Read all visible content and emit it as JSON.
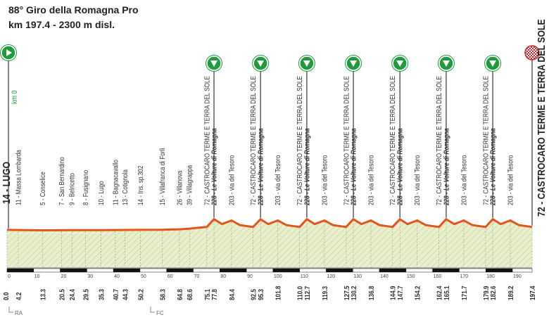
{
  "header": {
    "title": "88° Giro della Romagna Pro",
    "subtitle": "km 197.4 - 2300 m disl."
  },
  "chart_data": {
    "type": "area",
    "start": {
      "km": {
        "value": 0,
        "label": "0.0"
      },
      "label": "14 - LUGO",
      "note": "km 0"
    },
    "finish": {
      "km": 197.4,
      "label": "72 - CASTROCARO TERME E TERRA DEL SOLE"
    },
    "waypoints": [
      {
        "km": 4.2,
        "label": "11 - Massa Lombarda"
      },
      {
        "km": 13.3,
        "label": "5 - Conselice"
      },
      {
        "km": 20.5,
        "label": "7 - San Bernardino"
      },
      {
        "km": 24.4,
        "label": "9 - Belricetto"
      },
      {
        "km": 29.5,
        "label": "8 - Fusignano"
      },
      {
        "km": 35.3,
        "label": "10 - Lugo"
      },
      {
        "km": 40.7,
        "label": "11 - Bagnacavallo"
      },
      {
        "km": 44.3,
        "label": "13 - Cotignola"
      },
      {
        "km": 50.2,
        "label": "14 - Ins. sp.302"
      },
      {
        "km": 58.3,
        "label": "15 - Villafranca di Forlì"
      },
      {
        "km": 64.8,
        "label": "26 - Villanova"
      },
      {
        "km": 68.6,
        "label": "39 - Villagrappa"
      },
      {
        "km": 75.1,
        "label": "72 - CASTROCARO TERME E TERRA DEL SOLE"
      },
      {
        "km": 77.8,
        "label": "228 - Le Volture di Romagna",
        "climb": true
      },
      {
        "km": 84.4,
        "label": "203 - via del Tesoro"
      },
      {
        "km": 92.5,
        "label": "72 - CASTROCARO TERME E TERRA DEL SOLE"
      },
      {
        "km": 95.3,
        "label": "228 - Le Volture di Romagna",
        "climb": true
      },
      {
        "km": 101.8,
        "label": "203 - via del Tesoro"
      },
      {
        "km": 110,
        "label": "72 - CASTROCARO TERME E TERRA DEL SOLE",
        "km_label": "110.0"
      },
      {
        "km": 112.7,
        "label": "228 - Le Volture di Romagna",
        "climb": true
      },
      {
        "km": 119.3,
        "label": "203 - via del Tesoro"
      },
      {
        "km": 127.5,
        "label": "72 - CASTROCARO TERME E TERRA DEL SOLE"
      },
      {
        "km": 130.2,
        "label": "228 - Le Volture di Romagna",
        "climb": true
      },
      {
        "km": 136.8,
        "label": "203 - via del Tesoro"
      },
      {
        "km": 144.9,
        "label": "72 - CASTROCARO TERME E TERRA DEL SOLE"
      },
      {
        "km": 147.7,
        "label": "228 - Le Volture di Romagna",
        "climb": true
      },
      {
        "km": 154.2,
        "label": "203 - via del Tesoro"
      },
      {
        "km": 162.4,
        "label": "72 - CASTROCARO TERME E TERRA DEL SOLE"
      },
      {
        "km": 165.1,
        "label": "228 - Le Volture di Romagna",
        "climb": true
      },
      {
        "km": 171.7,
        "label": "203 - via del Tesoro"
      },
      {
        "km": 179.9,
        "label": "72 - CASTROCARO TERME E TERRA DEL SOLE"
      },
      {
        "km": 182.6,
        "label": "228 - Le Volture di Romagna",
        "climb": true
      },
      {
        "km": 189.2,
        "label": "203 - via del Tesoro"
      }
    ],
    "x": [
      0,
      4.2,
      13.3,
      20.5,
      24.4,
      29.5,
      35.3,
      40.7,
      44.3,
      50.2,
      58.3,
      64.8,
      68.6,
      75.1,
      77.8,
      80.8,
      84.4,
      87.5,
      92.5,
      95.3,
      98.2,
      101.8,
      105,
      110,
      112.7,
      115.7,
      119.3,
      122.5,
      127.5,
      130.2,
      133.2,
      136.8,
      140,
      144.9,
      147.7,
      150.6,
      154.2,
      157.4,
      162.4,
      165.1,
      168.1,
      171.7,
      174.9,
      179.9,
      182.6,
      185.6,
      189.2,
      192.4,
      197.4
    ],
    "values": [
      14,
      11,
      5,
      7,
      9,
      8,
      10,
      11,
      13,
      14,
      15,
      26,
      39,
      72,
      228,
      130,
      203,
      110,
      72,
      228,
      130,
      203,
      110,
      72,
      228,
      130,
      203,
      110,
      72,
      228,
      130,
      203,
      110,
      72,
      228,
      130,
      203,
      110,
      72,
      228,
      130,
      203,
      110,
      72,
      228,
      130,
      203,
      110,
      72
    ],
    "color": "#e2561e",
    "fill": "#eaf0cc",
    "xlim": [
      0,
      197.4
    ],
    "ylim": [
      -750,
      1100
    ],
    "xticks": [
      0,
      10,
      20,
      30,
      40,
      50,
      60,
      70,
      80,
      90,
      100,
      110,
      120,
      130,
      140,
      150,
      160,
      170,
      180,
      190
    ]
  },
  "footer": {
    "marks": [
      "RA",
      "FC"
    ]
  }
}
